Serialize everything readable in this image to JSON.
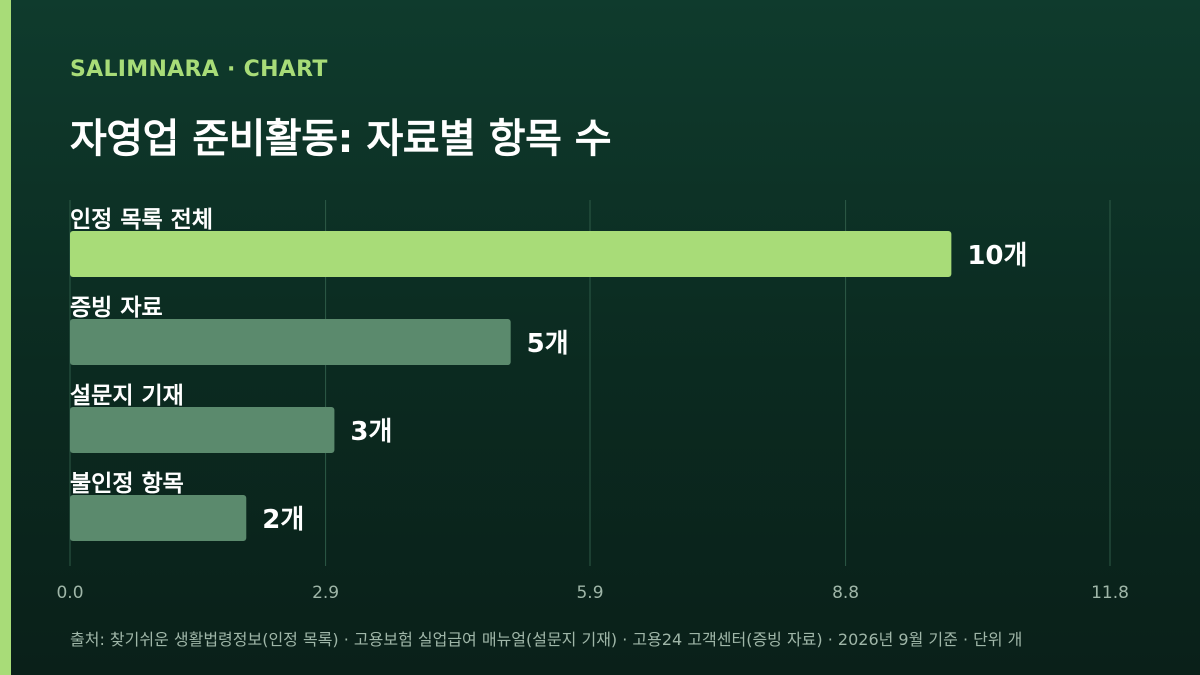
{
  "header": {
    "kicker": "SALIMNARA · CHART",
    "title": "자영업 준비활동: 자료별 항목 수"
  },
  "footer": {
    "source": "출처: 찾기쉬운 생활법령정보(인정 목록) · 고용보험 실업급여 매뉴얼(설문지 기재) · 고용24 고객센터(증빙 자료) · 2026년 9월 기준 · 단위 개"
  },
  "colors": {
    "accent": "#a8dc78",
    "bar_highlight": "#a8dc78",
    "bar_default": "#5b8a6d",
    "grid": "#2d5a47",
    "tick": "#9fb6a8"
  },
  "chart_data": {
    "type": "bar",
    "orientation": "horizontal",
    "categories": [
      "인정 목록 전체",
      "증빙 자료",
      "설문지 기재",
      "불인정 항목"
    ],
    "values": [
      10,
      5,
      3,
      2
    ],
    "value_labels": [
      "10개",
      "5개",
      "3개",
      "2개"
    ],
    "highlight_index": 0,
    "xlim": [
      0,
      11.8
    ],
    "xticks": [
      0,
      2.9,
      5.9,
      8.8,
      11.8
    ],
    "xtick_labels": [
      "0.0",
      "2.9",
      "5.9",
      "8.8",
      "11.8"
    ],
    "grid": true,
    "unit": "개"
  }
}
